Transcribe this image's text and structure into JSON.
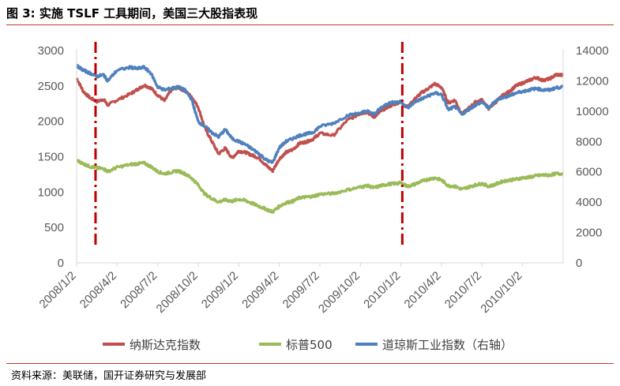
{
  "figure": {
    "title": "图 3:  实施 TSLF 工具期间，美国三大股指表现",
    "source": "资料来源：美联储，国开证券研究与发展部"
  },
  "chart_data": {
    "type": "line",
    "title": "",
    "x_tick_labels": [
      "2008/1/2",
      "2008/4/2",
      "2008/7/2",
      "2008/10/2",
      "2009/1/2",
      "2009/4/2",
      "2009/7/2",
      "2009/10/2",
      "2010/1/2",
      "2010/4/2",
      "2010/7/2",
      "2010/10/2"
    ],
    "x_range_month_index": [
      0,
      36
    ],
    "y_left": {
      "range": [
        0,
        3000
      ],
      "ticks": [
        0,
        500,
        1000,
        1500,
        2000,
        2500,
        3000
      ]
    },
    "y_right": {
      "range": [
        0,
        14000
      ],
      "ticks": [
        0,
        2000,
        4000,
        6000,
        8000,
        10000,
        12000,
        14000
      ]
    },
    "grid": false,
    "legend_position": "bottom",
    "vertical_markers": [
      {
        "month_index": 1.4,
        "style": "dash-dot",
        "color": "#c00000"
      },
      {
        "month_index": 24.1,
        "style": "dash-dot",
        "color": "#c00000"
      }
    ],
    "series": [
      {
        "name": "纳斯达克指数",
        "axis": "left",
        "color": "#c0504d",
        "x": [
          0,
          0.5,
          1,
          1.5,
          2,
          2.3,
          3,
          4,
          4.5,
          5,
          5.5,
          6,
          6.5,
          7,
          7.5,
          8,
          8.5,
          9,
          9.5,
          10,
          10.5,
          11,
          11.5,
          12,
          12.5,
          13,
          13.5,
          14,
          14.5,
          15,
          15.5,
          16,
          16.5,
          17,
          17.5,
          18,
          19,
          20,
          21,
          21.5,
          22,
          22.5,
          23,
          23.5,
          24,
          24.5,
          25,
          25.5,
          26,
          26.5,
          27,
          27.5,
          28,
          28.5,
          29,
          29.5,
          30,
          30.5,
          31,
          31.5,
          32,
          32.5,
          33,
          33.5,
          34,
          34.5,
          35,
          35.5,
          36
        ],
        "values": [
          2610,
          2420,
          2330,
          2280,
          2310,
          2230,
          2300,
          2390,
          2450,
          2510,
          2470,
          2370,
          2290,
          2440,
          2480,
          2430,
          2350,
          2200,
          1900,
          1720,
          1540,
          1620,
          1480,
          1580,
          1560,
          1520,
          1480,
          1380,
          1300,
          1470,
          1560,
          1600,
          1690,
          1710,
          1750,
          1830,
          1800,
          2010,
          2110,
          2130,
          2060,
          2140,
          2200,
          2240,
          2280,
          2200,
          2310,
          2400,
          2460,
          2530,
          2480,
          2260,
          2300,
          2100,
          2180,
          2270,
          2300,
          2180,
          2270,
          2360,
          2420,
          2500,
          2540,
          2580,
          2620,
          2580,
          2600,
          2660,
          2650
        ]
      },
      {
        "name": "标普500",
        "axis": "left",
        "color": "#9bbb59",
        "x": [
          0,
          0.5,
          1,
          1.5,
          2,
          2.3,
          3,
          4,
          4.5,
          5,
          5.5,
          6,
          6.5,
          7,
          7.5,
          8,
          8.5,
          9,
          9.5,
          10,
          10.5,
          11,
          11.5,
          12,
          12.5,
          13,
          13.5,
          14,
          14.5,
          15,
          15.5,
          16,
          16.5,
          17,
          17.5,
          18,
          19,
          20,
          21,
          21.5,
          22,
          22.5,
          23,
          23.5,
          24,
          24.5,
          25,
          25.5,
          26,
          26.5,
          27,
          27.5,
          28,
          28.5,
          29,
          29.5,
          30,
          30.5,
          31,
          31.5,
          32,
          32.5,
          33,
          33.5,
          34,
          34.5,
          35,
          35.5,
          36
        ],
        "values": [
          1450,
          1400,
          1360,
          1340,
          1330,
          1290,
          1350,
          1390,
          1400,
          1410,
          1360,
          1290,
          1260,
          1280,
          1300,
          1260,
          1200,
          1100,
          970,
          910,
          860,
          890,
          870,
          900,
          880,
          840,
          800,
          760,
          720,
          800,
          850,
          870,
          920,
          930,
          940,
          970,
          980,
          1030,
          1070,
          1090,
          1060,
          1090,
          1110,
          1120,
          1130,
          1080,
          1110,
          1150,
          1180,
          1200,
          1170,
          1090,
          1080,
          1040,
          1070,
          1100,
          1120,
          1080,
          1110,
          1150,
          1170,
          1180,
          1200,
          1210,
          1230,
          1240,
          1240,
          1260,
          1260
        ]
      },
      {
        "name": "道琼斯工业指数（右轴）",
        "axis": "right",
        "color": "#4f81bd",
        "x": [
          0,
          0.5,
          1,
          1.5,
          2,
          2.3,
          3,
          4,
          4.5,
          5,
          5.5,
          6,
          6.5,
          7,
          7.5,
          8,
          8.5,
          9,
          9.5,
          10,
          10.5,
          11,
          11.5,
          12,
          12.5,
          13,
          13.5,
          14,
          14.5,
          15,
          15.5,
          16,
          16.5,
          17,
          17.5,
          18,
          19,
          20,
          21,
          21.5,
          22,
          22.5,
          23,
          23.5,
          24,
          24.5,
          25,
          25.5,
          26,
          26.5,
          27,
          27.5,
          28,
          28.5,
          29,
          29.5,
          30,
          30.5,
          31,
          31.5,
          32,
          32.5,
          33,
          33.5,
          34,
          34.5,
          35,
          35.5,
          36
        ],
        "values": [
          13000,
          12700,
          12500,
          12300,
          12400,
          12000,
          12700,
          12900,
          12800,
          12900,
          12500,
          11600,
          11400,
          11500,
          11600,
          11400,
          10800,
          9300,
          9000,
          8600,
          8300,
          8800,
          8200,
          8000,
          7800,
          7500,
          7200,
          6800,
          6600,
          7600,
          8000,
          8200,
          8400,
          8500,
          8600,
          9000,
          9200,
          9700,
          9900,
          10000,
          9800,
          10200,
          10500,
          10600,
          10600,
          10200,
          10600,
          10800,
          11000,
          11200,
          11100,
          10100,
          10300,
          9800,
          10100,
          10400,
          10600,
          10200,
          10700,
          10900,
          11000,
          11200,
          11300,
          11400,
          11500,
          11400,
          11400,
          11550,
          11580
        ]
      }
    ]
  }
}
